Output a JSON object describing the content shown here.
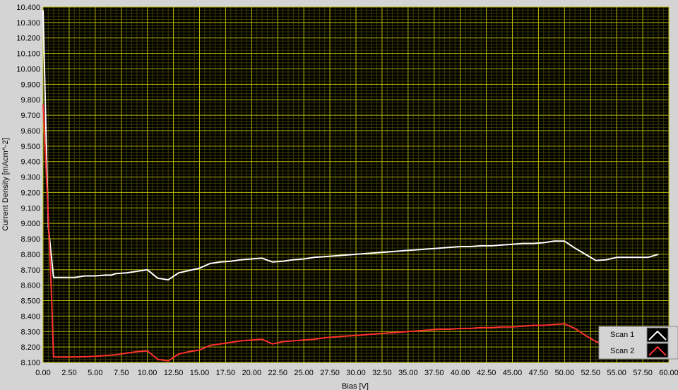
{
  "chart_data": {
    "type": "line",
    "xlabel": "Bias [V]",
    "ylabel": "Current Density [mAcm^-2]",
    "xlim": [
      0,
      60
    ],
    "ylim": [
      8.1,
      10.4
    ],
    "x_ticks": [
      "0.00",
      "2.50",
      "5.00",
      "7.50",
      "10.00",
      "12.50",
      "15.00",
      "17.50",
      "20.00",
      "22.50",
      "25.00",
      "27.50",
      "30.00",
      "32.50",
      "35.00",
      "37.50",
      "40.00",
      "42.50",
      "45.00",
      "47.50",
      "50.00",
      "52.50",
      "55.00",
      "57.50",
      "60.00"
    ],
    "y_ticks": [
      "8.100",
      "8.200",
      "8.300",
      "8.400",
      "8.500",
      "8.600",
      "8.700",
      "8.800",
      "8.900",
      "9.000",
      "9.100",
      "9.200",
      "9.300",
      "9.400",
      "9.500",
      "9.600",
      "9.700",
      "9.800",
      "9.900",
      "10.000",
      "10.100",
      "10.200",
      "10.300",
      "10.400"
    ],
    "grid": true,
    "legend": "bottom-right",
    "colors": {
      "background": "#d4d4d4",
      "plot_area": "#000000",
      "grid_major": "#b8b800",
      "grid_minor": "#3a3a00",
      "scan1": "#ffffff",
      "scan2": "#ff3030"
    },
    "series": [
      {
        "name": "Scan 1",
        "x": [
          0,
          0.5,
          1,
          2,
          3,
          4,
          5,
          6,
          6.5,
          7,
          8,
          9,
          10,
          11,
          12,
          13,
          14,
          15,
          16,
          17,
          18,
          19,
          20,
          21,
          22,
          23,
          24,
          25,
          26,
          27,
          28,
          29,
          30,
          31,
          32,
          33,
          34,
          35,
          36,
          37,
          38,
          39,
          40,
          41,
          42,
          43,
          44,
          45,
          46,
          47,
          48,
          49,
          50,
          51,
          52,
          53,
          54,
          55,
          56,
          57,
          58,
          59
        ],
        "values": [
          10.38,
          8.98,
          8.65,
          8.65,
          8.65,
          8.66,
          8.66,
          8.665,
          8.665,
          8.675,
          8.68,
          8.69,
          8.7,
          8.645,
          8.635,
          8.68,
          8.695,
          8.71,
          8.74,
          8.75,
          8.755,
          8.765,
          8.77,
          8.775,
          8.75,
          8.755,
          8.765,
          8.77,
          8.78,
          8.785,
          8.79,
          8.795,
          8.8,
          8.805,
          8.81,
          8.815,
          8.82,
          8.825,
          8.83,
          8.835,
          8.84,
          8.845,
          8.85,
          8.85,
          8.855,
          8.855,
          8.86,
          8.865,
          8.87,
          8.87,
          8.875,
          8.885,
          8.885,
          8.84,
          8.8,
          8.76,
          8.765,
          8.78,
          8.78,
          8.78,
          8.78,
          8.8
        ]
      },
      {
        "name": "Scan 2",
        "x": [
          0,
          0.4,
          0.8,
          1,
          2,
          3,
          4,
          5,
          6,
          7,
          8,
          9,
          10,
          11,
          12,
          13,
          14,
          15,
          16,
          17,
          18,
          19,
          20,
          21,
          22,
          23,
          24,
          25,
          26,
          27,
          28,
          29,
          30,
          31,
          32,
          33,
          34,
          35,
          36,
          37,
          38,
          39,
          40,
          41,
          42,
          43,
          44,
          45,
          46,
          47,
          48,
          49,
          50,
          51,
          52,
          53,
          53.5
        ],
        "values": [
          9.77,
          9.2,
          8.55,
          8.135,
          8.135,
          8.135,
          8.137,
          8.14,
          8.145,
          8.15,
          8.16,
          8.17,
          8.175,
          8.12,
          8.11,
          8.155,
          8.17,
          8.18,
          8.21,
          8.22,
          8.23,
          8.24,
          8.245,
          8.25,
          8.22,
          8.235,
          8.24,
          8.245,
          8.25,
          8.26,
          8.265,
          8.27,
          8.275,
          8.28,
          8.285,
          8.29,
          8.295,
          8.3,
          8.305,
          8.31,
          8.315,
          8.315,
          8.32,
          8.32,
          8.325,
          8.325,
          8.33,
          8.33,
          8.335,
          8.34,
          8.34,
          8.345,
          8.35,
          8.32,
          8.275,
          8.235,
          8.225
        ]
      }
    ]
  }
}
